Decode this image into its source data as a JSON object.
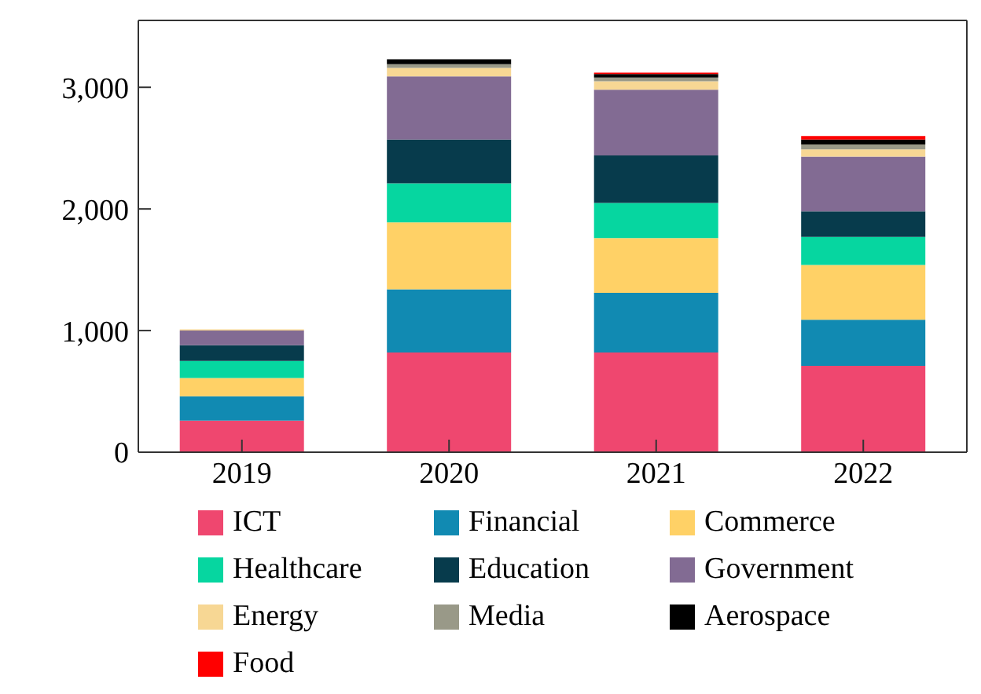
{
  "chart_data": {
    "type": "bar",
    "stacked": true,
    "categories": [
      "2019",
      "2020",
      "2021",
      "2022"
    ],
    "series": [
      {
        "name": "ICT",
        "color": "#ef476f",
        "values": [
          260,
          820,
          820,
          710
        ]
      },
      {
        "name": "Financial",
        "color": "#118ab2",
        "values": [
          200,
          520,
          490,
          380
        ]
      },
      {
        "name": "Commerce",
        "color": "#ffd166",
        "values": [
          150,
          550,
          450,
          450
        ]
      },
      {
        "name": "Healthcare",
        "color": "#06d6a0",
        "values": [
          140,
          320,
          290,
          230
        ]
      },
      {
        "name": "Education",
        "color": "#073b4c",
        "values": [
          130,
          360,
          390,
          210
        ]
      },
      {
        "name": "Government",
        "color": "#826b93",
        "values": [
          120,
          520,
          540,
          450
        ]
      },
      {
        "name": "Energy",
        "color": "#f7d794",
        "values": [
          10,
          70,
          70,
          60
        ]
      },
      {
        "name": "Media",
        "color": "#999988",
        "values": [
          0,
          30,
          30,
          40
        ]
      },
      {
        "name": "Aerospace",
        "color": "#000000",
        "values": [
          0,
          40,
          30,
          40
        ]
      },
      {
        "name": "Food",
        "color": "#ff0000",
        "values": [
          0,
          0,
          10,
          30
        ]
      }
    ],
    "ylim": [
      0,
      3550
    ],
    "yticks": [
      {
        "value": 0,
        "label": "0"
      },
      {
        "value": 1000,
        "label": "1,000"
      },
      {
        "value": 2000,
        "label": "2,000"
      },
      {
        "value": 3000,
        "label": "3,000"
      }
    ],
    "grid": false,
    "legend": "bottom"
  }
}
